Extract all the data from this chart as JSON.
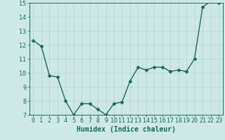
{
  "x": [
    0,
    1,
    2,
    3,
    4,
    5,
    6,
    7,
    8,
    9,
    10,
    11,
    12,
    13,
    14,
    15,
    16,
    17,
    18,
    19,
    20,
    21,
    22,
    23
  ],
  "y": [
    12.3,
    11.9,
    9.8,
    9.7,
    8.0,
    7.0,
    7.8,
    7.8,
    7.4,
    7.0,
    7.8,
    7.9,
    9.4,
    10.4,
    10.2,
    10.4,
    10.4,
    10.1,
    10.2,
    10.1,
    11.0,
    14.7,
    15.1,
    15.0
  ],
  "line_color": "#1a6b5a",
  "marker": "D",
  "marker_size": 2.5,
  "bg_color": "#cde8e5",
  "grid_color": "#b8d8d5",
  "xlabel": "Humidex (Indice chaleur)",
  "xlim": [
    -0.5,
    23.5
  ],
  "ylim": [
    7,
    15
  ],
  "yticks": [
    7,
    8,
    9,
    10,
    11,
    12,
    13,
    14,
    15
  ],
  "xticks": [
    0,
    1,
    2,
    3,
    4,
    5,
    6,
    7,
    8,
    9,
    10,
    11,
    12,
    13,
    14,
    15,
    16,
    17,
    18,
    19,
    20,
    21,
    22,
    23
  ],
  "tick_color": "#1a6b5a",
  "label_color": "#1a6b5a",
  "xlabel_fontsize": 7,
  "tick_fontsize": 6,
  "line_width": 1.0
}
